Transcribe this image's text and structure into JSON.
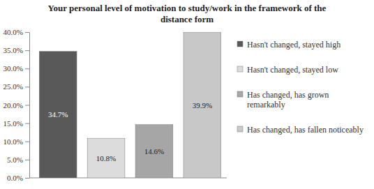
{
  "chart_data": {
    "type": "bar",
    "title": "Your personal level of motivation to study/work in the framework of the distance form",
    "categories": [
      "Hasn't changed, stayed high",
      "Hasn't changed, stayed low",
      "Has changed, has grown remarkably",
      "Has changed, has fallen noticeably"
    ],
    "values": [
      34.7,
      10.8,
      14.6,
      39.9
    ],
    "value_labels": [
      "34.7%",
      "10.8%",
      "14.6%",
      "39.9%"
    ],
    "data_labels": true,
    "colors": [
      "#595959",
      "#dcdcdc",
      "#a6a6a6",
      "#c8c8c8"
    ],
    "ylim": [
      0,
      40
    ],
    "yticks": [
      {
        "value": 0,
        "label": "0.0%"
      },
      {
        "value": 5,
        "label": "5.0%"
      },
      {
        "value": 10,
        "label": "10.0%"
      },
      {
        "value": 15,
        "label": "15.0%"
      },
      {
        "value": 20,
        "label": "20.0%"
      },
      {
        "value": 25,
        "label": "25.0%"
      },
      {
        "value": 30,
        "label": "30.0%"
      },
      {
        "value": 35,
        "label": "35.0%"
      },
      {
        "value": 40,
        "label": "40.0%"
      }
    ],
    "grid": false,
    "legend": "right",
    "tick_labels": "y"
  }
}
